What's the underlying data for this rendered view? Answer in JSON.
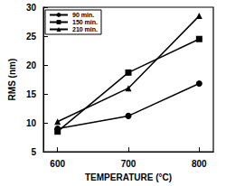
{
  "chart_data": {
    "type": "line",
    "x_label": "TEMPERATURE (°C)",
    "y_label": "RMS (nm)",
    "x": [
      600,
      700,
      800
    ],
    "series": [
      {
        "name": "90 min.",
        "color": "#000000",
        "marker": "circle",
        "values": [
          9.0,
          11.2,
          16.8
        ]
      },
      {
        "name": "150 min.",
        "color": "#000000",
        "marker": "square",
        "values": [
          8.5,
          18.7,
          24.5
        ]
      },
      {
        "name": "210 min.",
        "color": "#000000",
        "marker": "triangle",
        "values": [
          10.2,
          16.0,
          28.5
        ]
      }
    ],
    "xlim": [
      580,
      820
    ],
    "xticks": [
      600,
      700,
      800
    ],
    "ylim": [
      5,
      30
    ],
    "yticks": [
      5,
      10,
      15,
      20,
      25,
      30
    ],
    "grid": false,
    "legend": "upper left"
  }
}
